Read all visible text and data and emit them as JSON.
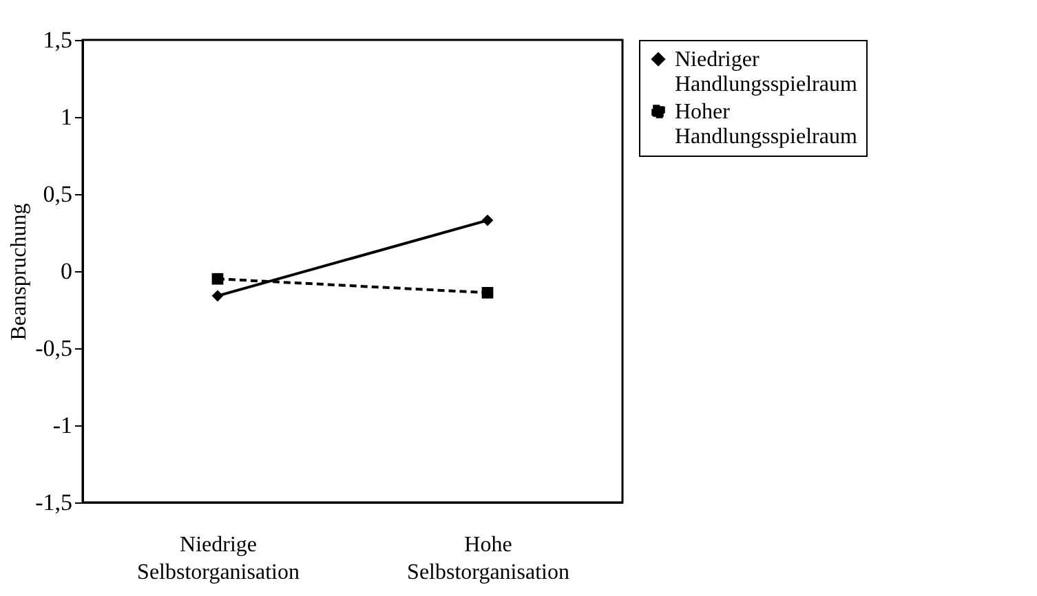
{
  "chart_data": {
    "type": "line",
    "ylabel": "Beanspruchung",
    "categories": [
      "Niedrige Selbstorganisation",
      "Hohe Selbstorganisation"
    ],
    "series": [
      {
        "name": "Niedriger Handlungsspielraum",
        "color": "#000000",
        "values": [
          -0.16,
          0.33
        ],
        "marker": "diamond",
        "line_style": "solid"
      },
      {
        "name": "Hoher Handlungsspielraum",
        "color": "#000000",
        "values": [
          -0.05,
          -0.14
        ],
        "marker": "square",
        "line_style": "dashed"
      }
    ],
    "ylim": [
      -1.5,
      1.5
    ],
    "yticks": [
      {
        "value": -1.5,
        "label": "-1,5"
      },
      -1,
      {
        "value": -0.5,
        "label": "-0,5"
      },
      0,
      {
        "value": 0.5,
        "label": "0,5"
      },
      1,
      {
        "value": 1.5,
        "label": "1,5"
      }
    ],
    "grid": false,
    "legend": "right"
  }
}
